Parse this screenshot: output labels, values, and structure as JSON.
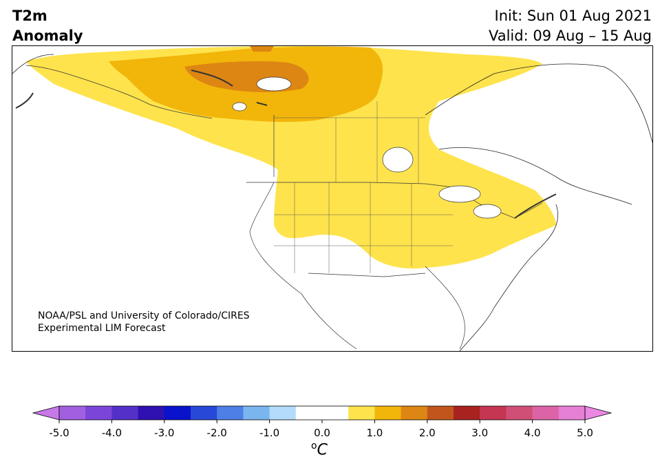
{
  "header": {
    "title_line1": "T2m",
    "title_line2": "Anomaly",
    "init_text": "Init: Sun 01 Aug 2021",
    "valid_text": "Valid: 09 Aug – 15 Aug"
  },
  "credit": {
    "line1": "NOAA/PSL and University of Colorado/CIRES",
    "line2": "Experimental LIM Forecast"
  },
  "map": {
    "region": "North America",
    "anomaly_areas": [
      {
        "level": "0.5 to 1.0",
        "color": "#fee34c",
        "extent": "northwest Canada, central Canada, northern and central US Plains, Midwest, Great Lakes, Northeast"
      },
      {
        "level": "1.0 to 1.5",
        "color": "#f2b50a",
        "extent": "northern Canada / Arctic Archipelago"
      },
      {
        "level": "1.5 to 2.0",
        "color": "#dd8613",
        "extent": "Arctic coast near Victoria Island"
      }
    ]
  },
  "colorbar": {
    "tick_labels": [
      "-5.0",
      "-4.0",
      "-3.0",
      "-2.0",
      "-1.0",
      "0.0",
      "1.0",
      "2.0",
      "3.0",
      "4.0",
      "5.0"
    ],
    "unit": "C",
    "unit_superscript": "o",
    "colors": [
      "#a060e0",
      "#7b45d9",
      "#5530c8",
      "#2f10b0",
      "#0a12cc",
      "#2848d8",
      "#4d7fe6",
      "#7ab5f0",
      "#b3dcfa",
      "#ffffff",
      "#ffffff",
      "#fee34c",
      "#f2b50a",
      "#dd8613",
      "#c1561c",
      "#a8221f",
      "#c43652",
      "#cf4f77",
      "#dc64a6",
      "#e67fd6"
    ],
    "under_color": "#c779e8",
    "over_color": "#ea88e2"
  }
}
